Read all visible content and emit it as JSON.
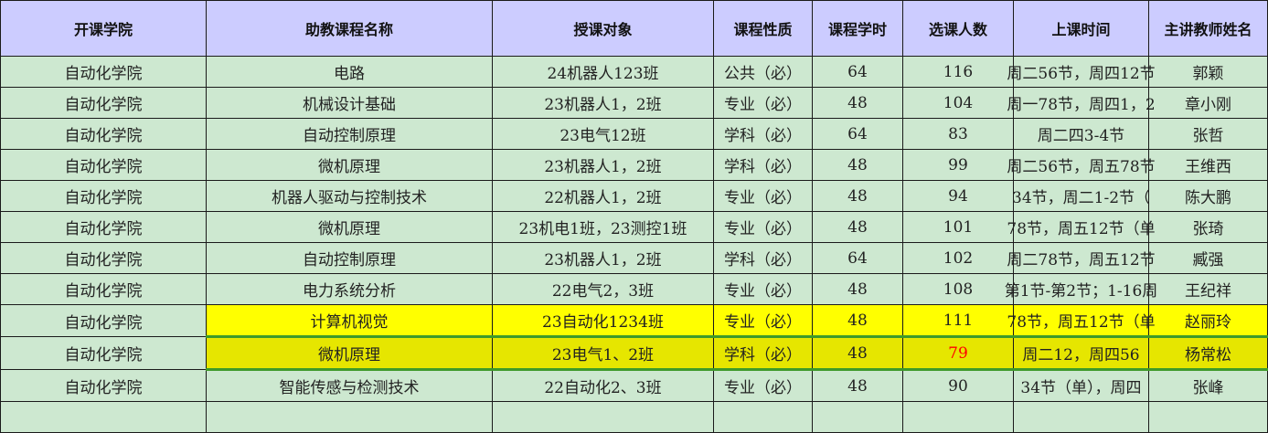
{
  "headers": [
    "开课学院",
    "助教课程名称",
    "授课对象",
    "课程性质",
    "课程学时",
    "选课人数",
    "上课时间",
    "主讲教师姓名"
  ],
  "rows": [
    [
      "自动化学院",
      "电路",
      "24机器人123班",
      "公共（必）",
      "64",
      "116",
      "周二56节，周四12节",
      "郭颖"
    ],
    [
      "自动化学院",
      "机械设计基础",
      "23机器人1，2班",
      "专业（必）",
      "48",
      "104",
      "周一78节，周四1，2",
      "章小刚"
    ],
    [
      "自动化学院",
      "自动控制原理",
      "23电气12班",
      "学科（必）",
      "64",
      "83",
      "周二四3-4节",
      "张哲"
    ],
    [
      "自动化学院",
      "微机原理",
      "23机器人1，2班",
      "学科（必）",
      "48",
      "99",
      "周二56节，周五78节",
      "王维西"
    ],
    [
      "自动化学院",
      "机器人驱动与控制技术",
      "22机器人1，2班",
      "专业（必）",
      "48",
      "94",
      "34节，周二1-2节（",
      "陈大鹏"
    ],
    [
      "自动化学院",
      "微机原理",
      "23机电1班，23测控1班",
      "专业（必）",
      "48",
      "101",
      "78节，周五12节（单",
      "张琦"
    ],
    [
      "自动化学院",
      "自动控制原理",
      "23机器人1，2班",
      "学科（必）",
      "64",
      "102",
      "周二78节，周五12节",
      "臧强"
    ],
    [
      "自动化学院",
      "电力系统分析",
      "22电气2，3班",
      "专业（必）",
      "48",
      "108",
      "第1节-第2节；1-16周",
      "王纪祥"
    ],
    [
      "自动化学院",
      "计算机视觉",
      "23自动化1234班",
      "专业（必）",
      "48",
      "111",
      "78节，周五12节（单",
      "赵丽玲"
    ],
    [
      "自动化学院",
      "微机原理",
      "23电气1、2班",
      "学科（必）",
      "48",
      "79",
      "周二12，周四56",
      "杨常松"
    ],
    [
      "自动化学院",
      "智能传感与检测技术",
      "22自动化2、3班",
      "专业（必）",
      "48",
      "90",
      "34节（单），周四",
      "张峰"
    ],
    [
      "",
      "",
      "",
      "",
      "",
      "",
      "",
      ""
    ]
  ],
  "highlighted_row": 8,
  "selected_row": 9,
  "red_cell": {
    "row": 9,
    "col": 5
  },
  "colors": {
    "header_bg": "#ccccff",
    "body_bg": "#cde8d0",
    "highlight": "#ffff00",
    "selected": "#e6e600",
    "selection_border": "#3e9a2a",
    "alert_text": "#ff0000"
  }
}
